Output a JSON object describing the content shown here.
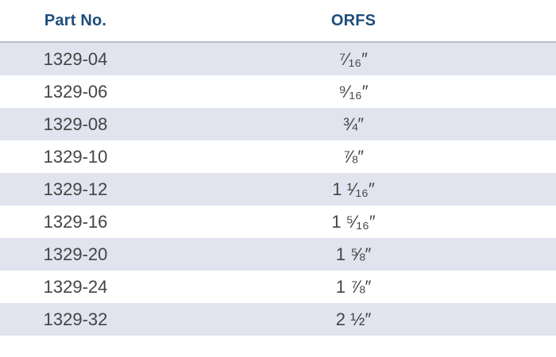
{
  "table": {
    "headers": {
      "part_no": "Part No.",
      "orfs": "ORFS"
    },
    "rows": [
      {
        "part_no": "1329-04",
        "orfs": "⁷⁄₁₆″"
      },
      {
        "part_no": "1329-06",
        "orfs": "⁹⁄₁₆″"
      },
      {
        "part_no": "1329-08",
        "orfs": "¾″"
      },
      {
        "part_no": "1329-10",
        "orfs": "⅞″"
      },
      {
        "part_no": "1329-12",
        "orfs": "1 ¹⁄₁₆″"
      },
      {
        "part_no": "1329-16",
        "orfs": "1 ⁵⁄₁₆″"
      },
      {
        "part_no": "1329-20",
        "orfs": "1 ⅝″"
      },
      {
        "part_no": "1329-24",
        "orfs": "1 ⅞″"
      },
      {
        "part_no": "1329-32",
        "orfs": "2 ½″"
      }
    ]
  },
  "colors": {
    "header_text": "#1d4d7c",
    "row_shade": "#e1e4ef",
    "body_text": "#444444"
  }
}
